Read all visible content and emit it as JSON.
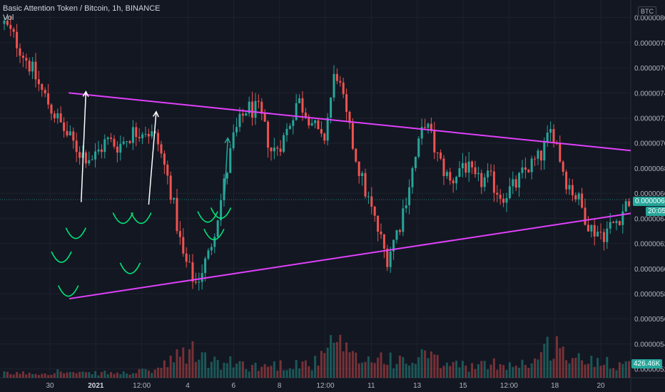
{
  "legend": {
    "title": "Basic Attention Token / Bitcoin, 1h, BINANCE",
    "vol_label": "Vol"
  },
  "currency_button": "BTC",
  "colors": {
    "background": "#131722",
    "grid": "#1e222d",
    "up": "#26a69a",
    "down": "#ef5350",
    "trendline": "#e040fb",
    "cup": "#00e676",
    "white_arrow": "#ffffff",
    "teal_arrow": "#26a69a",
    "price_badge": "#26a69a",
    "time_badge": "#26a69a",
    "vol_badge": "#26a69a"
  },
  "badges": {
    "last_price": "0.00000655",
    "countdown": "20:05",
    "volume": "426.46K"
  },
  "chart_data": {
    "type": "candlestick",
    "symbol": "BAT/BTC",
    "interval": "1h",
    "exchange": "BINANCE",
    "y_ticks": [
      "0.00000800",
      "0.00000780",
      "0.00000760",
      "0.00000740",
      "0.00000720",
      "0.00000700",
      "0.00000680",
      "0.00000660",
      "0.00000640",
      "0.00000620",
      "0.00000600",
      "0.00000580",
      "0.00000560",
      "0.00000540",
      "0.00000520"
    ],
    "ylim": [
      5.13e-06,
      8.14e-06
    ],
    "x_ticks": [
      {
        "label": "30",
        "bold": false
      },
      {
        "label": "2021",
        "bold": true
      },
      {
        "label": "12:00",
        "bold": false
      },
      {
        "label": "4",
        "bold": false
      },
      {
        "label": "6",
        "bold": false
      },
      {
        "label": "8",
        "bold": false
      },
      {
        "label": "12:00",
        "bold": false
      },
      {
        "label": "11",
        "bold": false
      },
      {
        "label": "13",
        "bold": false
      },
      {
        "label": "15",
        "bold": false
      },
      {
        "label": "12:00",
        "bold": false
      },
      {
        "label": "18",
        "bold": false
      },
      {
        "label": "20",
        "bold": false
      }
    ],
    "price_path": [
      7.95e-06,
      7.8e-06,
      7.62e-06,
      7.4e-06,
      7.22e-06,
      7.05e-06,
      6.92e-06,
      6.88e-06,
      7.02e-06,
      6.98e-06,
      7.08e-06,
      7.12e-06,
      7.02e-06,
      6.65e-06,
      6.1e-06,
      5.88e-06,
      6.1e-06,
      6.55e-06,
      7.05e-06,
      7.28e-06,
      7.25e-06,
      6.92e-06,
      7.05e-06,
      7.35e-06,
      7.2e-06,
      6.98e-06,
      7.6e-06,
      7.12e-06,
      6.72e-06,
      6.4e-06,
      6.08e-06,
      6.35e-06,
      6.78e-06,
      7.18e-06,
      6.88e-06,
      6.68e-06,
      6.85e-06,
      6.68e-06,
      6.72e-06,
      6.58e-06,
      6.65e-06,
      6.8e-06,
      6.88e-06,
      7.12e-06,
      6.72e-06,
      6.55e-06,
      6.32e-06,
      6.28e-06,
      6.38e-06,
      6.55e-06
    ],
    "volume_level": [
      0.1,
      0.1,
      0.12,
      0.1,
      0.15,
      0.12,
      0.1,
      0.1,
      0.12,
      0.1,
      0.12,
      0.15,
      0.2,
      0.35,
      0.55,
      0.6,
      0.4,
      0.3,
      0.35,
      0.3,
      0.25,
      0.3,
      0.3,
      0.35,
      0.3,
      0.45,
      0.9,
      0.5,
      0.4,
      0.45,
      0.5,
      0.35,
      0.35,
      0.55,
      0.35,
      0.3,
      0.3,
      0.25,
      0.3,
      0.35,
      0.3,
      0.35,
      0.45,
      0.85,
      0.55,
      0.4,
      0.4,
      0.45,
      0.35,
      0.3
    ],
    "annotations": {
      "upper_trendline": {
        "from": {
          "bar": 20.5,
          "price": 7.4e-06
        },
        "to_price_at_right": 6.94e-06
      },
      "lower_trendline": {
        "from": {
          "bar": 20.7,
          "price": 5.76e-06
        },
        "to_price_at_right": 6.44e-06
      },
      "cups": [
        {
          "bar": 18.2,
          "price": 6.05e-06
        },
        {
          "bar": 20.4,
          "price": 5.78e-06
        },
        {
          "bar": 22.8,
          "price": 6.24e-06
        },
        {
          "bar": 37.8,
          "price": 6.36e-06
        },
        {
          "bar": 40.1,
          "price": 5.96e-06
        },
        {
          "bar": 43.6,
          "price": 6.36e-06
        },
        {
          "bar": 64.8,
          "price": 6.37e-06
        },
        {
          "bar": 66.8,
          "price": 6.23e-06
        },
        {
          "bar": 69.0,
          "price": 6.4e-06
        }
      ],
      "white_arrows": [
        {
          "from": {
            "bar": 24.5,
            "price": 6.53e-06
          },
          "to": {
            "bar": 26.0,
            "price": 7.41e-06
          }
        },
        {
          "from": {
            "bar": 46.0,
            "price": 6.51e-06
          },
          "to": {
            "bar": 48.4,
            "price": 7.25e-06
          }
        }
      ],
      "teal_arrow": {
        "from": {
          "bar": 70.2,
          "price": 6.59e-06
        },
        "to": {
          "bar": 71.2,
          "price": 7.04e-06
        }
      }
    }
  }
}
